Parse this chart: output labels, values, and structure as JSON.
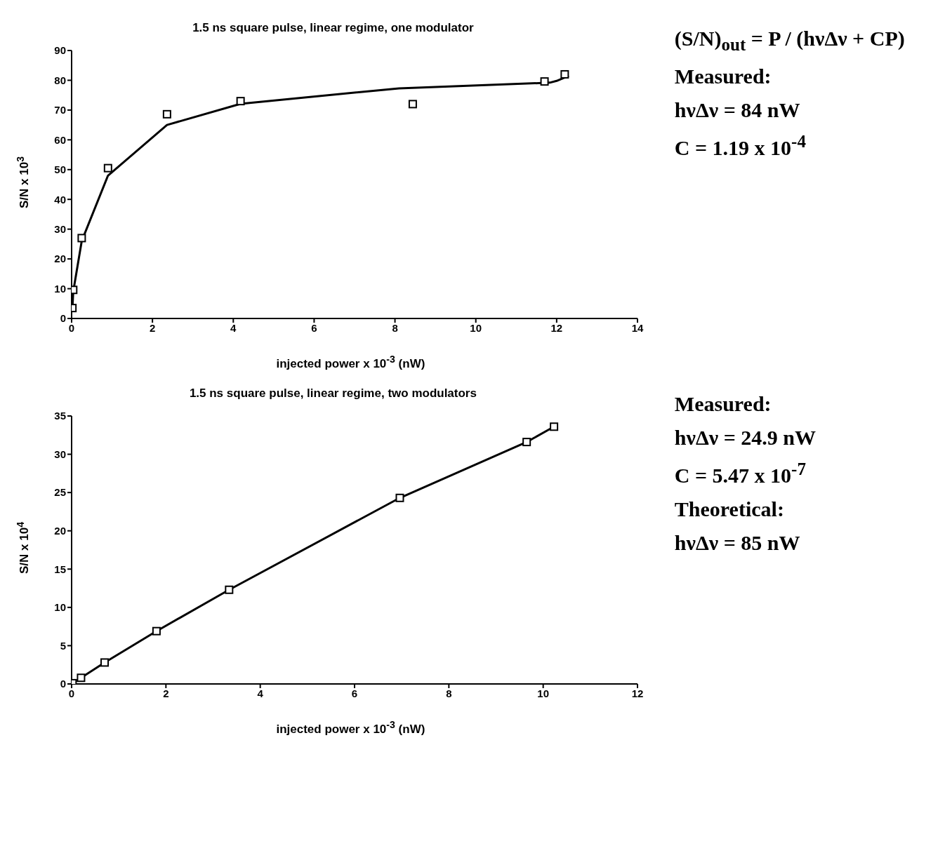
{
  "chart_data": [
    {
      "type": "scatter",
      "title": "1.5 ns square pulse, linear regime, one modulator",
      "xlabel": "injected power x 10$^{-3}$ (nW)",
      "ylabel": "S/N x 10$^{3}$",
      "xlim": [
        0,
        14
      ],
      "xticks": [
        0,
        2,
        4,
        6,
        8,
        10,
        12,
        14
      ],
      "ylim": [
        0,
        90
      ],
      "yticks": [
        0,
        10,
        20,
        30,
        40,
        50,
        60,
        70,
        80,
        90
      ],
      "series": [
        {
          "color": "#000000",
          "marker": "square",
          "x": [
            0.02,
            0.04,
            0.25,
            0.9,
            2.36,
            4.18,
            8.44,
            11.7,
            12.2
          ],
          "values": [
            3.5,
            9.6,
            27,
            50.5,
            68.6,
            73,
            72,
            79.6,
            82
          ]
        },
        {
          "type": "line",
          "color": "#000000",
          "marker": "none",
          "line_style": "solid",
          "x": [
            0.02,
            0.04,
            0.25,
            0.9,
            2.36,
            4.18,
            8.1,
            11.83,
            12.0,
            12.3
          ],
          "values": [
            3.5,
            9,
            26,
            48,
            65,
            72.1,
            77.3,
            79.2,
            79.8,
            81.5
          ]
        }
      ],
      "annotations": [
        "(S/N)$_{out}$ = P / (hνΔν + CP)",
        "Measured:",
        "hνΔν = 84 nW",
        "C = 1.19 x 10$^{-4}$"
      ]
    },
    {
      "type": "line",
      "title": "1.5 ns square pulse, linear regime, two modulators",
      "xlabel": "injected power x 10$^{-3}$ (nW)",
      "ylabel": "S/N x 10$^{4}$",
      "xlim": [
        0,
        12
      ],
      "xticks": [
        0,
        2,
        4,
        6,
        8,
        10,
        12
      ],
      "ylim": [
        0,
        35
      ],
      "yticks": [
        0,
        5,
        10,
        15,
        20,
        25,
        30,
        35
      ],
      "series": [
        {
          "color": "#000000",
          "marker": "square",
          "line_style": "solid",
          "x": [
            0.02,
            0.2,
            0.7,
            1.8,
            3.34,
            6.96,
            9.65,
            10.23
          ],
          "values": [
            0.1,
            0.8,
            2.8,
            6.9,
            12.3,
            24.3,
            31.6,
            33.6
          ]
        }
      ],
      "annotations": [
        "Measured:",
        "hνΔν = 24.9 nW",
        "C = 5.47 x 10$^{-7}$",
        "Theoretical:",
        "hνΔν = 85 nW"
      ]
    }
  ]
}
